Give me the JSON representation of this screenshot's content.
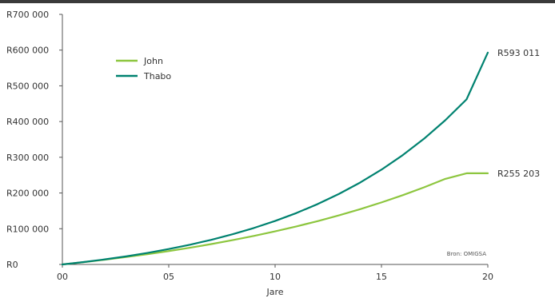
{
  "chart_data": {
    "type": "line",
    "x": [
      0,
      1,
      2,
      3,
      4,
      5,
      6,
      7,
      8,
      9,
      10,
      11,
      12,
      13,
      14,
      15,
      16,
      17,
      18,
      19,
      20
    ],
    "series": [
      {
        "name": "John",
        "color": "#8dc63f",
        "values": [
          0,
          6400,
          13300,
          20800,
          28800,
          37500,
          46900,
          57000,
          68000,
          79800,
          92600,
          106400,
          121300,
          137400,
          154800,
          173600,
          193900,
          215800,
          239500,
          255203,
          255203
        ]
      },
      {
        "name": "Thabo",
        "color": "#008270",
        "values": [
          0,
          6700,
          14200,
          22700,
          32300,
          43100,
          55300,
          69000,
          84500,
          102000,
          121700,
          143900,
          169000,
          197300,
          229300,
          265300,
          306000,
          351900,
          403700,
          462100,
          593011
        ]
      }
    ],
    "xlabel": "Jare",
    "ylabel": "",
    "xlim": [
      0,
      20
    ],
    "ylim": [
      0,
      700000
    ],
    "x_ticks": [
      {
        "value": 0,
        "label": "00"
      },
      {
        "value": 5,
        "label": "05"
      },
      {
        "value": 10,
        "label": "10"
      },
      {
        "value": 15,
        "label": "15"
      },
      {
        "value": 20,
        "label": "20"
      }
    ],
    "y_ticks": [
      {
        "value": 0,
        "label": "R0"
      },
      {
        "value": 100000,
        "label": "R100 000"
      },
      {
        "value": 200000,
        "label": "R200 000"
      },
      {
        "value": 300000,
        "label": "R300 000"
      },
      {
        "value": 400000,
        "label": "R400 000"
      },
      {
        "value": 500000,
        "label": "R500 000"
      },
      {
        "value": 600000,
        "label": "R600 000"
      },
      {
        "value": 700000,
        "label": "R700 000"
      }
    ],
    "end_labels": [
      {
        "series": "Thabo",
        "value": 593011,
        "text": "R593 011"
      },
      {
        "series": "John",
        "value": 255203,
        "text": "R255 203"
      }
    ],
    "legend_position": "top-left",
    "grid": false,
    "source": "Bron: OMIGSA"
  }
}
